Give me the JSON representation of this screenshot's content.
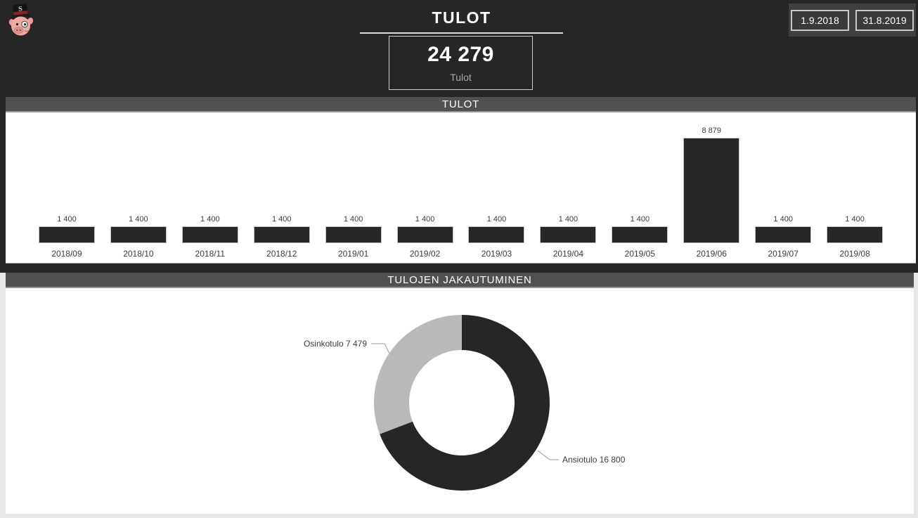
{
  "app": {
    "title": "TULOT",
    "logo": {
      "icon": "pig-top-hat-logo",
      "hat_letter": "S"
    },
    "kpi": {
      "value": "24 279",
      "label": "Tulot"
    },
    "date_range": {
      "start": "1.9.2018",
      "end": "31.8.2019"
    }
  },
  "colors": {
    "background_dark": "#262626",
    "section_header_bg": "#515151",
    "panel_bg": "#ffffff",
    "bottom_margin_bg": "#e7e7e7",
    "bar_fill": "#262626",
    "donut_primary": "#262626",
    "donut_secondary": "#b9b9b9",
    "text_light": "#ffffff",
    "text_dark": "#3b3b3b"
  },
  "chart_data": [
    {
      "type": "bar",
      "title": "TULOT",
      "categories": [
        "2018/09",
        "2018/10",
        "2018/11",
        "2018/12",
        "2019/01",
        "2019/02",
        "2019/03",
        "2019/04",
        "2019/05",
        "2019/06",
        "2019/07",
        "2019/08"
      ],
      "values": [
        1400,
        1400,
        1400,
        1400,
        1400,
        1400,
        1400,
        1400,
        1400,
        8879,
        1400,
        1400
      ],
      "data_labels": [
        "1 400",
        "1 400",
        "1 400",
        "1 400",
        "1 400",
        "1 400",
        "1 400",
        "1 400",
        "1 400",
        "8 879",
        "1 400",
        "1 400"
      ],
      "ylim": [
        0,
        8879
      ],
      "bar_color": "#262626",
      "grid": false,
      "legend": false
    },
    {
      "type": "pie",
      "donut": true,
      "title": "TULOJEN JAKAUTUMINEN",
      "total": 24279,
      "slices": [
        {
          "label": "Ansiotulo",
          "value": 16800,
          "display": "Ansiotulo 16 800",
          "color": "#262626"
        },
        {
          "label": "Osinkotulo",
          "value": 7479,
          "display": "Osinkotulo 7 479",
          "color": "#b9b9b9"
        }
      ],
      "start_angle_deg": 0,
      "direction": "clockwise",
      "legend": false
    }
  ]
}
